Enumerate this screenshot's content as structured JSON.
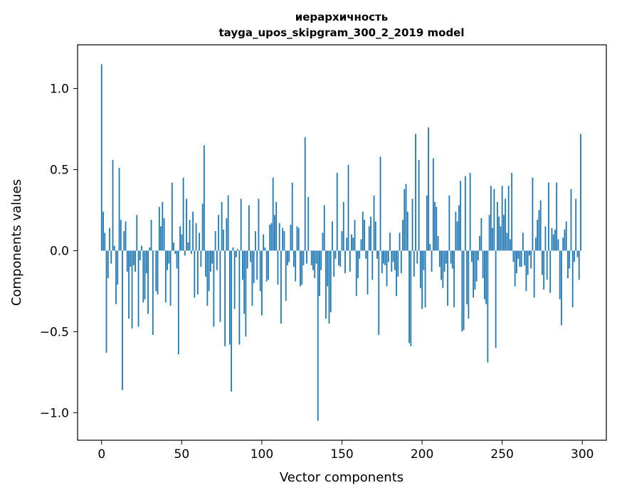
{
  "chart_data": {
    "type": "bar",
    "title": "иерархичность",
    "subtitle": "tayga_upos_skipgram_300_2_2019 model",
    "xlabel": "Vector components",
    "ylabel": "Components values",
    "xlim": [
      -15,
      315
    ],
    "ylim": [
      -1.17,
      1.27
    ],
    "xticks": [
      0,
      50,
      100,
      150,
      200,
      250,
      300
    ],
    "yticks": [
      -1.0,
      -0.5,
      0.0,
      0.5,
      1.0
    ],
    "xtick_labels": [
      "0",
      "50",
      "100",
      "150",
      "200",
      "250",
      "300"
    ],
    "ytick_labels": [
      "−1.0",
      "−0.5",
      "0.0",
      "0.5",
      "1.0"
    ],
    "bar_color": "#1f77b4",
    "grid": false,
    "x": [
      0,
      1,
      2,
      3,
      4,
      5,
      6,
      7,
      8,
      9,
      10,
      11,
      12,
      13,
      14,
      15,
      16,
      17,
      18,
      19,
      20,
      21,
      22,
      23,
      24,
      25,
      26,
      27,
      28,
      29,
      30,
      31,
      32,
      33,
      34,
      35,
      36,
      37,
      38,
      39,
      40,
      41,
      42,
      43,
      44,
      45,
      46,
      47,
      48,
      49,
      50,
      51,
      52,
      53,
      54,
      55,
      56,
      57,
      58,
      59,
      60,
      61,
      62,
      63,
      64,
      65,
      66,
      67,
      68,
      69,
      70,
      71,
      72,
      73,
      74,
      75,
      76,
      77,
      78,
      79,
      80,
      81,
      82,
      83,
      84,
      85,
      86,
      87,
      88,
      89,
      90,
      91,
      92,
      93,
      94,
      95,
      96,
      97,
      98,
      99,
      100,
      101,
      102,
      103,
      104,
      105,
      106,
      107,
      108,
      109,
      110,
      111,
      112,
      113,
      114,
      115,
      116,
      117,
      118,
      119,
      120,
      121,
      122,
      123,
      124,
      125,
      126,
      127,
      128,
      129,
      130,
      131,
      132,
      133,
      134,
      135,
      136,
      137,
      138,
      139,
      140,
      141,
      142,
      143,
      144,
      145,
      146,
      147,
      148,
      149,
      150,
      151,
      152,
      153,
      154,
      155,
      156,
      157,
      158,
      159,
      160,
      161,
      162,
      163,
      164,
      165,
      166,
      167,
      168,
      169,
      170,
      171,
      172,
      173,
      174,
      175,
      176,
      177,
      178,
      179,
      180,
      181,
      182,
      183,
      184,
      185,
      186,
      187,
      188,
      189,
      190,
      191,
      192,
      193,
      194,
      195,
      196,
      197,
      198,
      199,
      200,
      201,
      202,
      203,
      204,
      205,
      206,
      207,
      208,
      209,
      210,
      211,
      212,
      213,
      214,
      215,
      216,
      217,
      218,
      219,
      220,
      221,
      222,
      223,
      224,
      225,
      226,
      227,
      228,
      229,
      230,
      231,
      232,
      233,
      234,
      235,
      236,
      237,
      238,
      239,
      240,
      241,
      242,
      243,
      244,
      245,
      246,
      247,
      248,
      249,
      250,
      251,
      252,
      253,
      254,
      255,
      256,
      257,
      258,
      259,
      260,
      261,
      262,
      263,
      264,
      265,
      266,
      267,
      268,
      269,
      270,
      271,
      272,
      273,
      274,
      275,
      276,
      277,
      278,
      279,
      280,
      281,
      282,
      283,
      284,
      285,
      286,
      287,
      288,
      289,
      290,
      291,
      292,
      293,
      294,
      295,
      296,
      297,
      298,
      299
    ],
    "values": [
      1.15,
      0.24,
      0.11,
      -0.63,
      -0.17,
      0.14,
      -0.08,
      0.56,
      0.03,
      -0.33,
      -0.21,
      0.51,
      0.19,
      -0.86,
      0.12,
      0.18,
      -0.13,
      -0.42,
      -0.1,
      -0.48,
      -0.09,
      -0.13,
      0.22,
      -0.47,
      -0.06,
      0.03,
      -0.32,
      -0.3,
      -0.14,
      -0.39,
      0.02,
      0.19,
      -0.52,
      0.0,
      -0.25,
      -0.27,
      0.27,
      0.15,
      0.3,
      0.2,
      -0.32,
      -0.12,
      -0.08,
      -0.34,
      0.42,
      0.05,
      -0.02,
      -0.11,
      -0.64,
      0.15,
      0.1,
      0.45,
      -0.03,
      0.32,
      0.05,
      0.19,
      -0.02,
      0.24,
      -0.29,
      0.17,
      -0.27,
      0.11,
      -0.1,
      0.29,
      0.65,
      -0.16,
      -0.34,
      -0.25,
      -0.13,
      -0.08,
      -0.47,
      0.12,
      -0.12,
      0.22,
      -0.44,
      0.3,
      0.13,
      -0.59,
      0.2,
      0.34,
      -0.58,
      -0.87,
      0.02,
      -0.36,
      -0.04,
      0.01,
      -0.58,
      0.32,
      -0.18,
      -0.39,
      -0.53,
      -0.11,
      0.28,
      -0.07,
      -0.34,
      -0.2,
      0.12,
      -0.18,
      0.32,
      -0.25,
      -0.4,
      0.1,
      0.02,
      -0.19,
      -0.18,
      0.16,
      0.17,
      0.45,
      0.22,
      0.3,
      -0.21,
      0.17,
      -0.45,
      0.14,
      0.12,
      -0.31,
      -0.09,
      -0.07,
      0.16,
      0.42,
      -0.1,
      -0.19,
      0.15,
      0.14,
      -0.22,
      -0.21,
      -0.09,
      0.7,
      -0.08,
      0.33,
      0.0,
      -0.09,
      -0.12,
      -0.17,
      -0.08,
      -1.05,
      -0.28,
      -0.12,
      0.11,
      0.28,
      -0.42,
      -0.22,
      -0.45,
      -0.38,
      0.18,
      -0.16,
      -0.05,
      0.48,
      -0.09,
      -0.1,
      0.12,
      0.3,
      -0.14,
      0.08,
      0.53,
      -0.13,
      0.1,
      0.08,
      0.19,
      -0.28,
      -0.17,
      -0.05,
      0.07,
      0.24,
      0.19,
      -0.05,
      -0.27,
      0.15,
      0.21,
      -0.18,
      0.34,
      0.18,
      -0.05,
      -0.52,
      0.58,
      -0.14,
      -0.08,
      -0.09,
      -0.22,
      -0.07,
      0.11,
      -0.13,
      -0.07,
      -0.12,
      -0.28,
      -0.16,
      0.11,
      -0.14,
      0.19,
      0.38,
      0.41,
      0.24,
      -0.57,
      -0.59,
      0.32,
      -0.16,
      0.72,
      -0.08,
      0.56,
      -0.23,
      -0.36,
      -0.12,
      -0.35,
      0.34,
      0.76,
      0.04,
      -0.13,
      0.57,
      0.3,
      0.27,
      0.09,
      -0.1,
      -0.18,
      -0.23,
      -0.13,
      -0.08,
      -0.34,
      0.34,
      -0.08,
      -0.11,
      -0.35,
      0.24,
      0.18,
      0.28,
      0.43,
      -0.5,
      -0.49,
      0.46,
      -0.33,
      -0.42,
      0.48,
      -0.07,
      -0.29,
      -0.24,
      -0.19,
      -0.06,
      0.09,
      0.2,
      -0.17,
      -0.3,
      -0.33,
      -0.69,
      0.22,
      0.4,
      0.14,
      0.38,
      -0.6,
      0.3,
      0.21,
      0.15,
      0.4,
      0.22,
      0.32,
      0.11,
      0.4,
      0.07,
      0.48,
      -0.07,
      -0.22,
      -0.14,
      -0.05,
      -0.1,
      -0.1,
      0.11,
      -0.09,
      -0.25,
      -0.15,
      -0.03,
      -0.11,
      0.45,
      -0.29,
      0.08,
      0.19,
      0.25,
      0.31,
      -0.15,
      -0.24,
      0.15,
      -0.18,
      0.42,
      -0.26,
      0.14,
      0.1,
      0.13,
      0.42,
      0.07,
      -0.3,
      -0.46,
      0.08,
      0.13,
      0.18,
      -0.17,
      -0.11,
      0.38,
      -0.35,
      -0.07,
      0.32,
      -0.04,
      -0.18,
      0.72
    ]
  }
}
